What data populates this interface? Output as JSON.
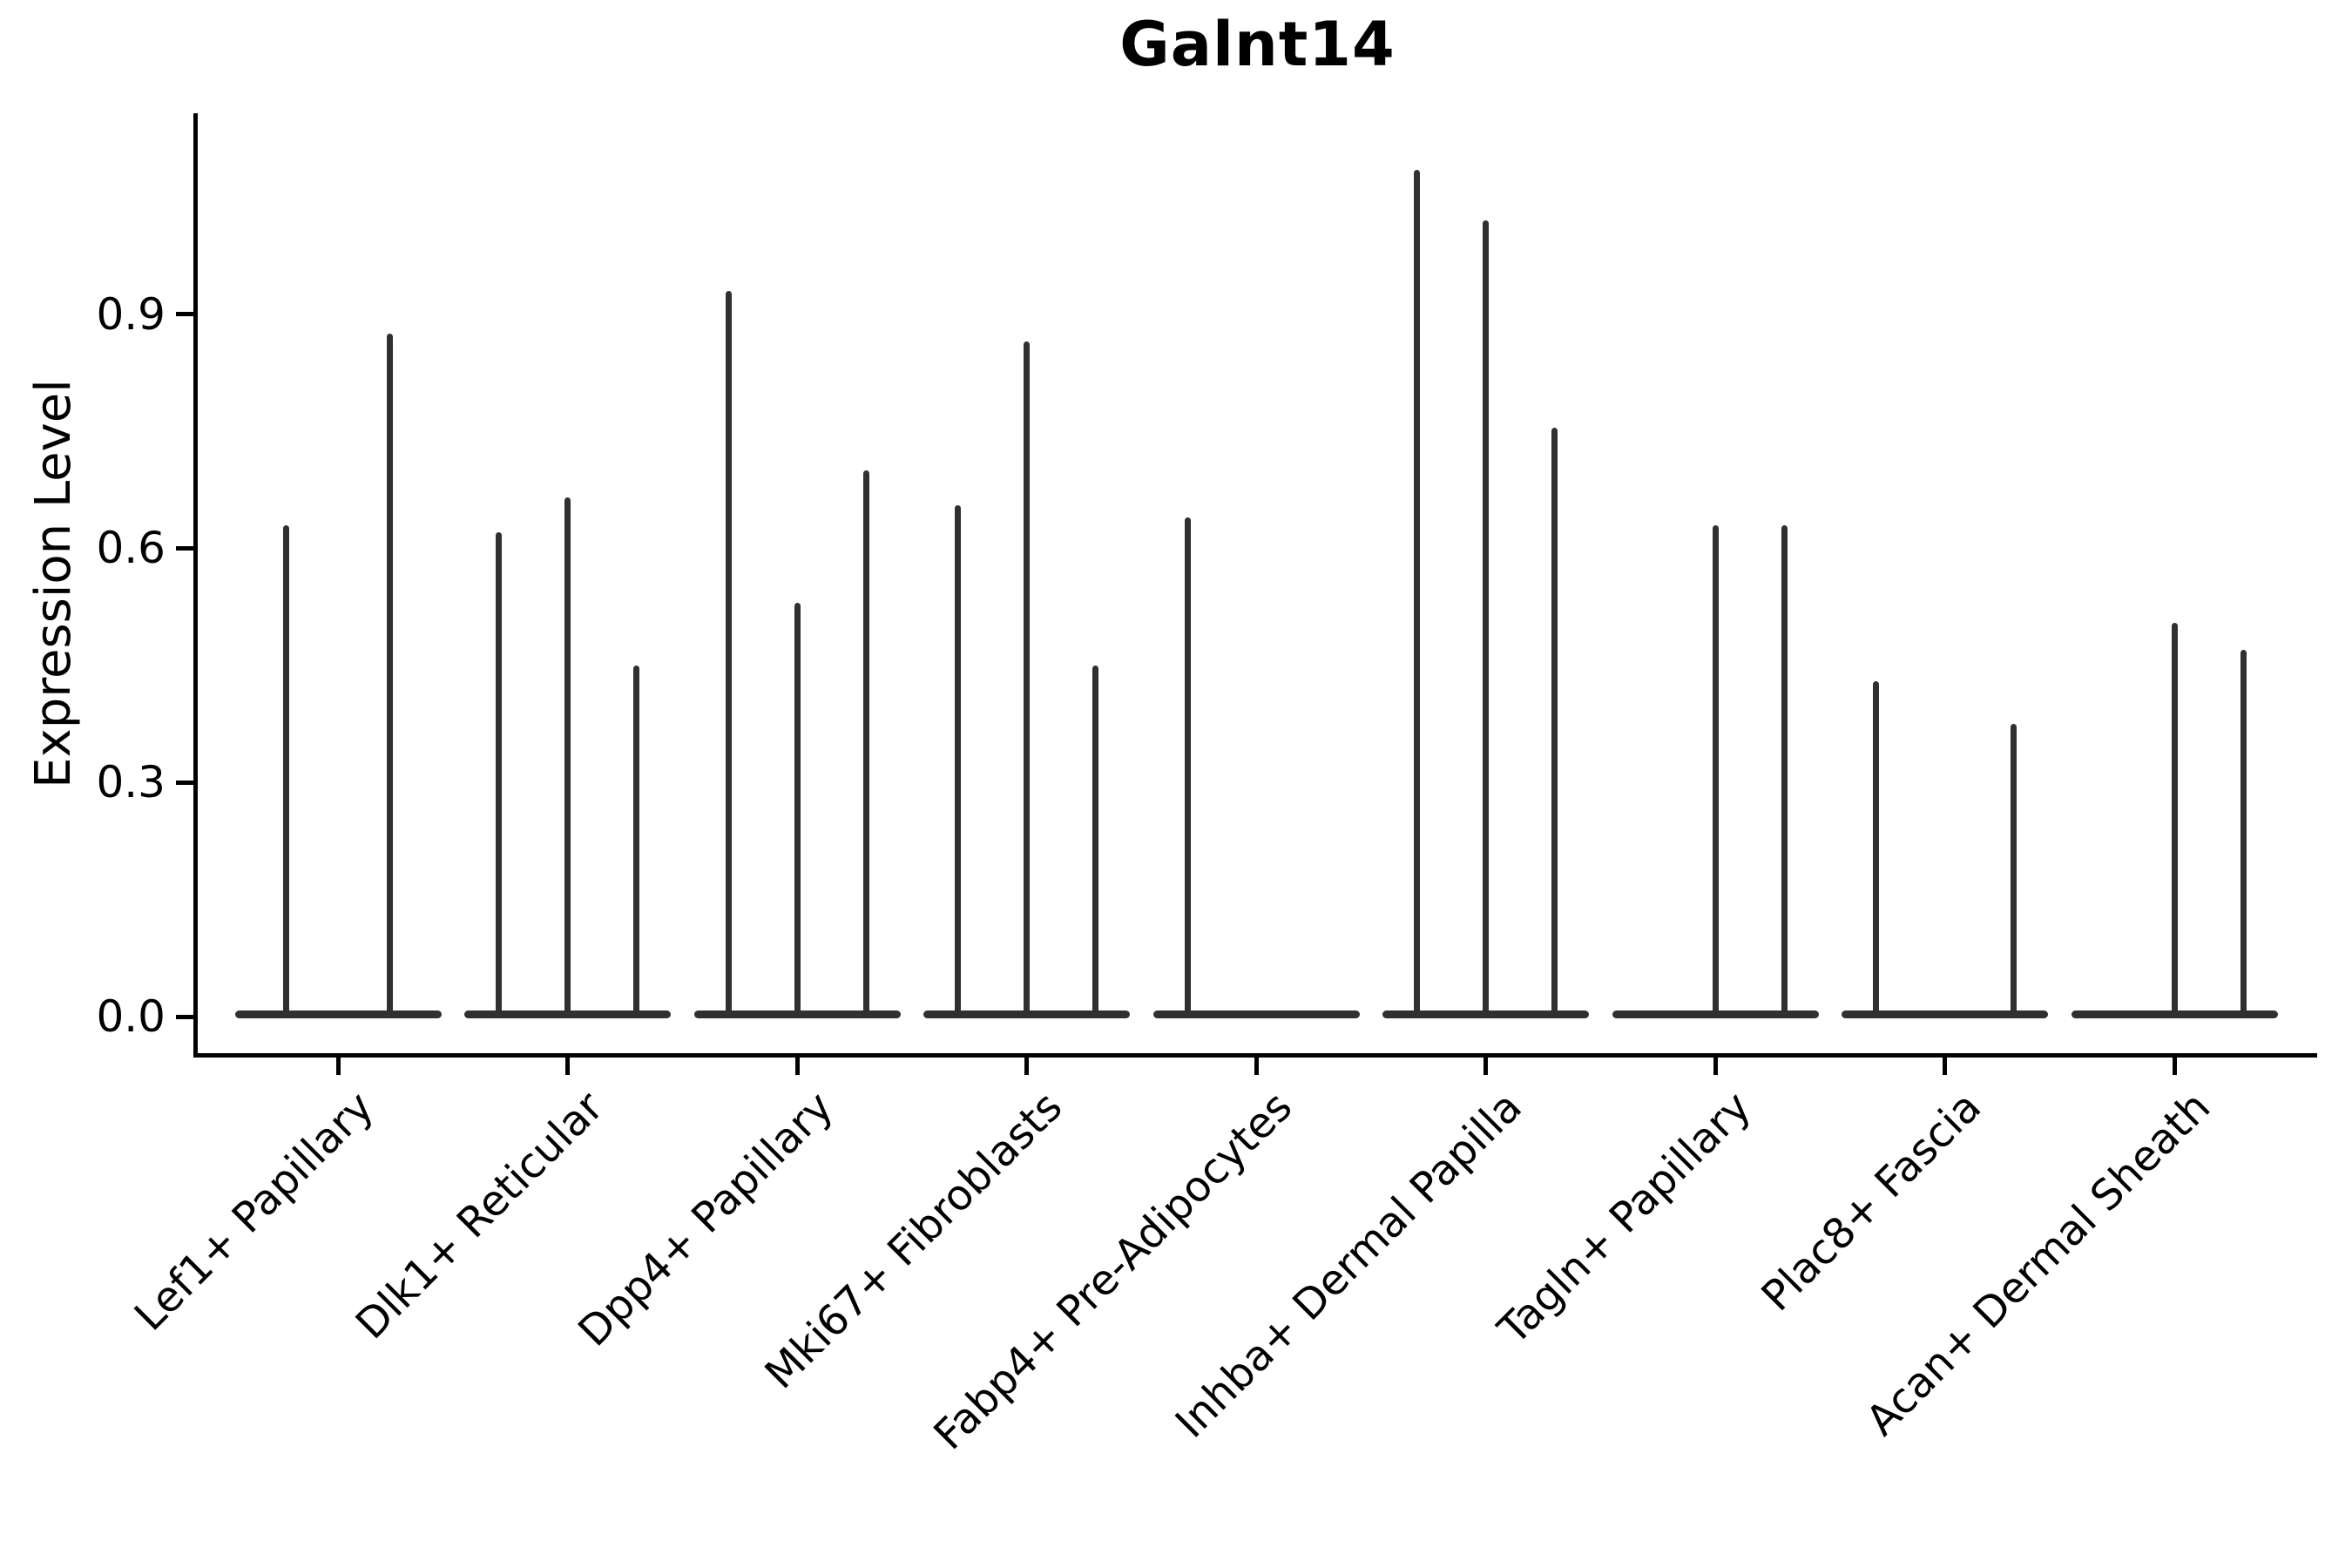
{
  "chart_data": {
    "type": "violin",
    "title": "Galnt14",
    "ylabel": "Expression Level",
    "xlabel": "",
    "grid": false,
    "legend_position": "none",
    "background_color": "#ffffff",
    "axis_color": "#000000",
    "violin_color": "#303030",
    "ylim": [
      -0.05,
      1.16
    ],
    "yticks": [
      "0.0",
      "0.3",
      "0.6",
      "0.9"
    ],
    "ytick_values": [
      0.0,
      0.3,
      0.6,
      0.9
    ],
    "categories": [
      "Lef1+ Papillary",
      "Dlk1+ Reticular",
      "Dpp4+ Papillary",
      "Mki67+ Fibroblasts",
      "Fabp4+ Pre-Adipocytes",
      "Inhba+ Dermal Papilla",
      "Tagln+ Papillary",
      "Plac8+ Fascia",
      "Acan+ Dermal Sheath"
    ],
    "series": [
      {
        "name": "Lef1+ Papillary",
        "violin_max_values": [
          0.63,
          0.875
        ]
      },
      {
        "name": "Dlk1+ Reticular",
        "violin_max_values": [
          0.62,
          0.665,
          0.45
        ]
      },
      {
        "name": "Dpp4+ Papillary",
        "violin_max_values": [
          0.93,
          0.53,
          0.7
        ]
      },
      {
        "name": "Mki67+ Fibroblasts",
        "violin_max_values": [
          0.655,
          0.865,
          0.45
        ]
      },
      {
        "name": "Fabp4+ Pre-Adipocytes",
        "violin_max_values": [
          0.64,
          0,
          0
        ]
      },
      {
        "name": "Inhba+ Dermal Papilla",
        "violin_max_values": [
          1.085,
          1.02,
          0.755
        ]
      },
      {
        "name": "Tagln+ Papillary",
        "violin_max_values": [
          0,
          0.63,
          0.63
        ]
      },
      {
        "name": "Plac8+ Fascia",
        "violin_max_values": [
          0.43,
          0,
          0.375
        ]
      },
      {
        "name": "Acan+ Dermal Sheath",
        "violin_max_values": [
          0,
          0.505,
          0.47
        ]
      }
    ]
  }
}
